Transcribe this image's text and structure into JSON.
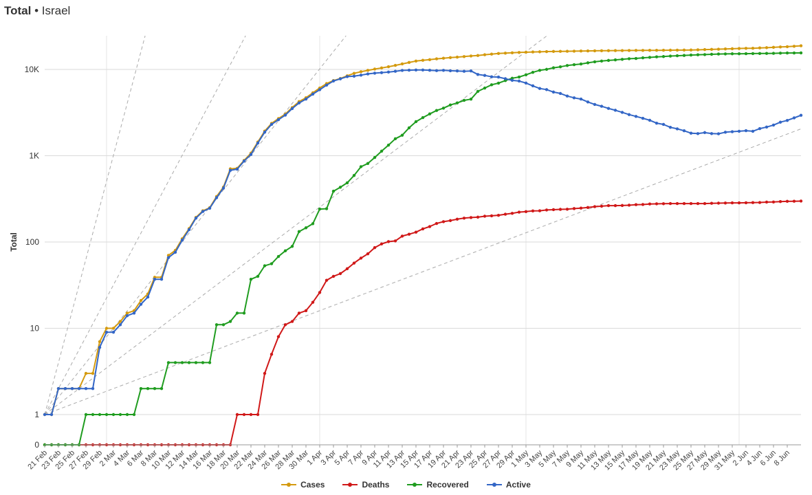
{
  "title": {
    "main": "Total",
    "sep": " • ",
    "location": "Israel"
  },
  "colors": {
    "cases": "#d49a0e",
    "deaths": "#d01818",
    "recovered": "#1f9c1f",
    "active": "#3366c6",
    "grid": "#d9d9d9",
    "axis": "#666666",
    "guide": "#aaaaaa"
  },
  "chart_data": {
    "type": "line",
    "title": "",
    "xlabel": "",
    "ylabel": "Total",
    "yscale": "log",
    "ytick_labels": [
      "0",
      "1",
      "10",
      "100",
      "1K",
      "10K"
    ],
    "ytick_values": [
      0,
      1,
      10,
      100,
      1000,
      10000
    ],
    "ylim": [
      0,
      25000
    ],
    "x_start": "21 Feb",
    "x_end": "9 Jun",
    "xtick_labels": [
      "21 Feb",
      "23 Feb",
      "25 Feb",
      "27 Feb",
      "29 Feb",
      "2 Mar",
      "4 Mar",
      "6 Mar",
      "8 Mar",
      "10 Mar",
      "12 Mar",
      "14 Mar",
      "16 Mar",
      "18 Mar",
      "20 Mar",
      "22 Mar",
      "24 Mar",
      "26 Mar",
      "28 Mar",
      "30 Mar",
      "1 Apr",
      "3 Apr",
      "5 Apr",
      "7 Apr",
      "9 Apr",
      "11 Apr",
      "13 Apr",
      "15 Apr",
      "17 Apr",
      "19 Apr",
      "21 Apr",
      "23 Apr",
      "25 Apr",
      "27 Apr",
      "29 Apr",
      "1 May",
      "3 May",
      "5 May",
      "7 May",
      "9 May",
      "11 May",
      "13 May",
      "15 May",
      "17 May",
      "19 May",
      "21 May",
      "23 May",
      "25 May",
      "27 May",
      "29 May",
      "31 May",
      "2 Jun",
      "4 Jun",
      "6 Jun",
      "8 Jun"
    ],
    "grid": true,
    "legend_position": "bottom-center",
    "series": [
      {
        "name": "Cases",
        "key": "cases",
        "values": [
          1,
          1,
          2,
          2,
          2,
          2,
          3,
          3,
          7,
          10,
          10,
          12,
          15,
          16,
          21,
          25,
          39,
          39,
          70,
          80,
          109,
          143,
          193,
          230,
          250,
          337,
          433,
          705,
          715,
          883,
          1071,
          1442,
          1930,
          2369,
          2693,
          3035,
          3619,
          4247,
          4695,
          5358,
          6092,
          6857,
          7428,
          7851,
          8430,
          9006,
          9404,
          9755,
          10095,
          10408,
          10743,
          11145,
          11586,
          12046,
          12501,
          12758,
          12982,
          13265,
          13491,
          13713,
          13883,
          14095,
          14326,
          14498,
          14803,
          15058,
          15298,
          15443,
          15589,
          15728,
          15834,
          15946,
          16004,
          16101,
          16152,
          16193,
          16246,
          16289,
          16346,
          16381,
          16436,
          16477,
          16506,
          16529,
          16548,
          16579,
          16608,
          16617,
          16643,
          16659,
          16690,
          16712,
          16734,
          16757,
          16793,
          16872,
          16987,
          17071,
          17169,
          17285,
          17377,
          17495,
          17562,
          17607,
          17752,
          17863,
          18032,
          18216,
          18355,
          18569,
          18795
        ]
      },
      {
        "name": "Deaths",
        "key": "deaths",
        "values": [
          0,
          0,
          0,
          0,
          0,
          0,
          0,
          0,
          0,
          0,
          0,
          0,
          0,
          0,
          0,
          0,
          0,
          0,
          0,
          0,
          0,
          0,
          0,
          0,
          0,
          0,
          0,
          0,
          1,
          1,
          1,
          1,
          3,
          5,
          8,
          11,
          12,
          15,
          16,
          20,
          26,
          36,
          40,
          43,
          49,
          57,
          65,
          73,
          86,
          95,
          101,
          103,
          117,
          123,
          130,
          142,
          151,
          164,
          172,
          177,
          184,
          189,
          192,
          194,
          199,
          201,
          204,
          210,
          215,
          222,
          225,
          229,
          230,
          235,
          237,
          239,
          240,
          244,
          247,
          251,
          257,
          260,
          264,
          264,
          265,
          267,
          271,
          272,
          276,
          277,
          278,
          279,
          279,
          279,
          279,
          279,
          279,
          281,
          282,
          283,
          284,
          284,
          285,
          286,
          287,
          290,
          291,
          294,
          296,
          297,
          298
        ]
      },
      {
        "name": "Recovered",
        "key": "recovered",
        "values": [
          0,
          0,
          0,
          0,
          0,
          0,
          1,
          1,
          1,
          1,
          1,
          1,
          1,
          1,
          2,
          2,
          2,
          2,
          4,
          4,
          4,
          4,
          4,
          4,
          4,
          11,
          11,
          12,
          15,
          15,
          37,
          40,
          53,
          56,
          68,
          79,
          89,
          132,
          146,
          163,
          241,
          243,
          388,
          431,
          485,
          591,
          746,
          813,
          954,
          1129,
          1326,
          1574,
          1728,
          2105,
          2482,
          2763,
          3051,
          3347,
          3559,
          3874,
          4092,
          4383,
          4524,
          5565,
          6080,
          6640,
          6936,
          7426,
          7901,
          8168,
          8659,
          9263,
          9761,
          10022,
          10443,
          10722,
          11093,
          11359,
          11568,
          11929,
          12249,
          12507,
          12721,
          12901,
          13102,
          13309,
          13408,
          13628,
          13791,
          13998,
          14107,
          14298,
          14407,
          14531,
          14686,
          14788,
          14855,
          14975,
          15091,
          15130,
          15180,
          15205,
          15223,
          15280,
          15293,
          15336,
          15376,
          15442,
          15502,
          15526,
          15546
        ]
      },
      {
        "name": "Active",
        "key": "active",
        "values": [
          1,
          1,
          2,
          2,
          2,
          2,
          2,
          2,
          6,
          9,
          9,
          11,
          14,
          15,
          19,
          23,
          37,
          37,
          66,
          76,
          105,
          139,
          189,
          226,
          246,
          326,
          422,
          677,
          699,
          867,
          1033,
          1401,
          1874,
          2308,
          2617,
          2957,
          3518,
          4095,
          4533,
          5175,
          5825,
          6578,
          7348,
          7774,
          8259,
          8355,
          8593,
          8869,
          9055,
          9184,
          9316,
          9511,
          9741,
          9798,
          9850,
          9853,
          9780,
          9695,
          9760,
          9658,
          9607,
          9523,
          9610,
          8740,
          8520,
          8217,
          8158,
          7807,
          7473,
          7338,
          6950,
          6454,
          6013,
          5842,
          5470,
          5268,
          4913,
          4686,
          4539,
          4201,
          3930,
          3740,
          3533,
          3364,
          3181,
          2993,
          2858,
          2717,
          2576,
          2384,
          2305,
          2135,
          2048,
          1947,
          1824,
          1805,
          1853,
          1805,
          1796,
          1872,
          1900,
          1922,
          1950,
          1921,
          2062,
          2148,
          2266,
          2446,
          2566,
          2743,
          2941
        ]
      }
    ],
    "guides": [
      1,
      2,
      3,
      5,
      10
    ]
  }
}
